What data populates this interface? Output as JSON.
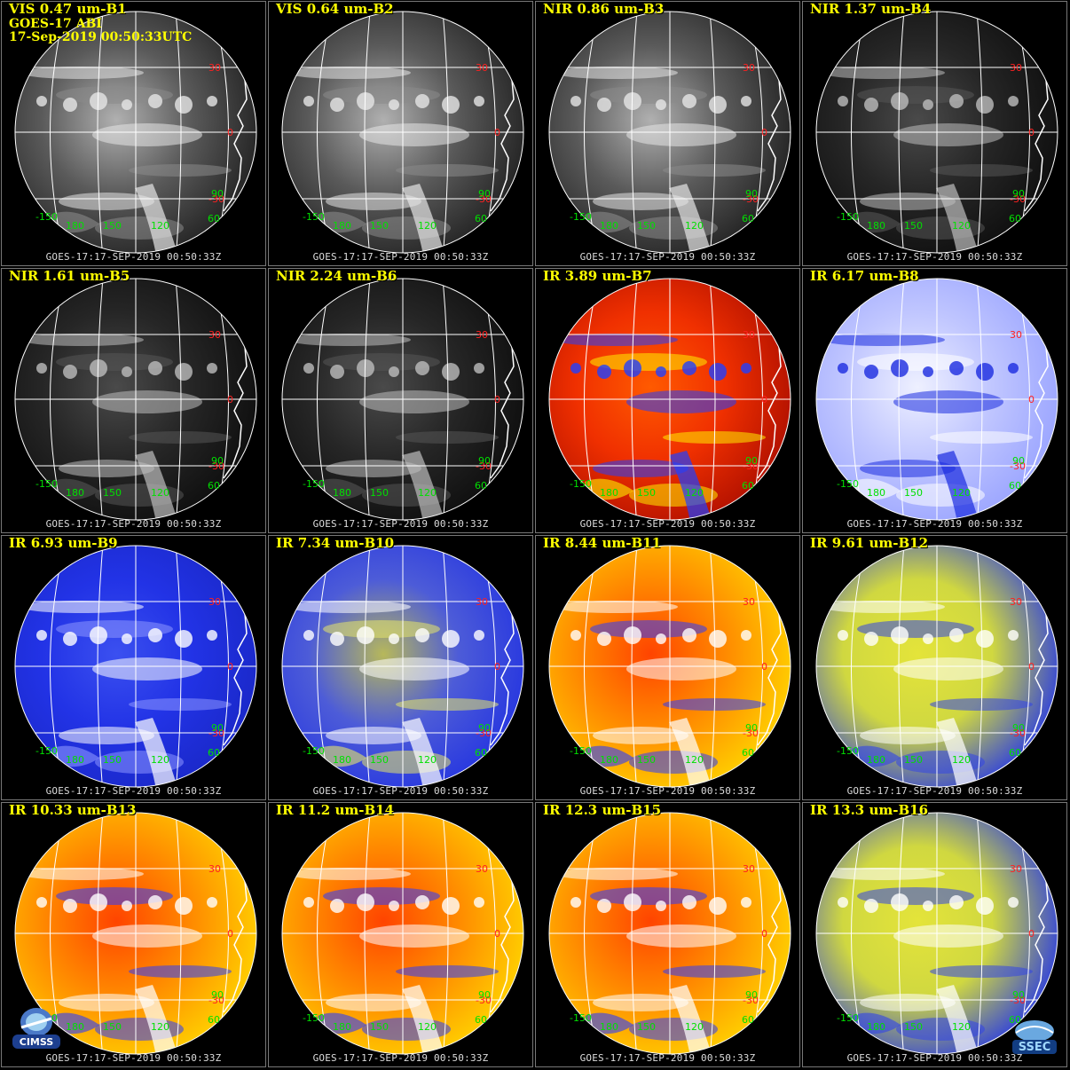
{
  "image": {
    "title_line2": "GOES-17 ABI",
    "title_line3": "17-Sep-2019 00:50:33UTC",
    "footer": "GOES-17:17-SEP-2019 00:50:33Z",
    "panels": [
      {
        "label": "VIS 0.47 um-B1",
        "palette": "gray"
      },
      {
        "label": "VIS 0.64 um-B2",
        "palette": "gray"
      },
      {
        "label": "NIR 0.86 um-B3",
        "palette": "gray"
      },
      {
        "label": "NIR 1.37 um-B4",
        "palette": "dark"
      },
      {
        "label": "NIR 1.61 um-B5",
        "palette": "dark"
      },
      {
        "label": "NIR 2.24 um-B6",
        "palette": "dark"
      },
      {
        "label": "IR 3.89 um-B7",
        "palette": "red"
      },
      {
        "label": "IR 6.17 um-B8",
        "palette": "wv_white"
      },
      {
        "label": "IR 6.93 um-B9",
        "palette": "wv_blue"
      },
      {
        "label": "IR 7.34 um-B10",
        "palette": "wv_yellow"
      },
      {
        "label": "IR 8.44 um-B11",
        "palette": "orange"
      },
      {
        "label": "IR 9.61 um-B12",
        "palette": "yellow_blue"
      },
      {
        "label": "IR 10.33 um-B13",
        "palette": "orange"
      },
      {
        "label": "IR 11.2 um-B14",
        "palette": "orange"
      },
      {
        "label": "IR 12.3 um-B15",
        "palette": "orange"
      },
      {
        "label": "IR 13.3 um-B16",
        "palette": "yellow_blue"
      }
    ],
    "lat_labels": [
      "30",
      "0",
      "-30"
    ],
    "lon_labels": [
      "-150",
      "180",
      "150",
      "120",
      "60",
      "90"
    ],
    "logos": {
      "left": "CIMSS",
      "right": "SSEC"
    },
    "colors": {
      "title": "#ffff00",
      "lat_label": "#ff2020",
      "lon_label": "#00e000",
      "grid": "#ffffff"
    }
  }
}
